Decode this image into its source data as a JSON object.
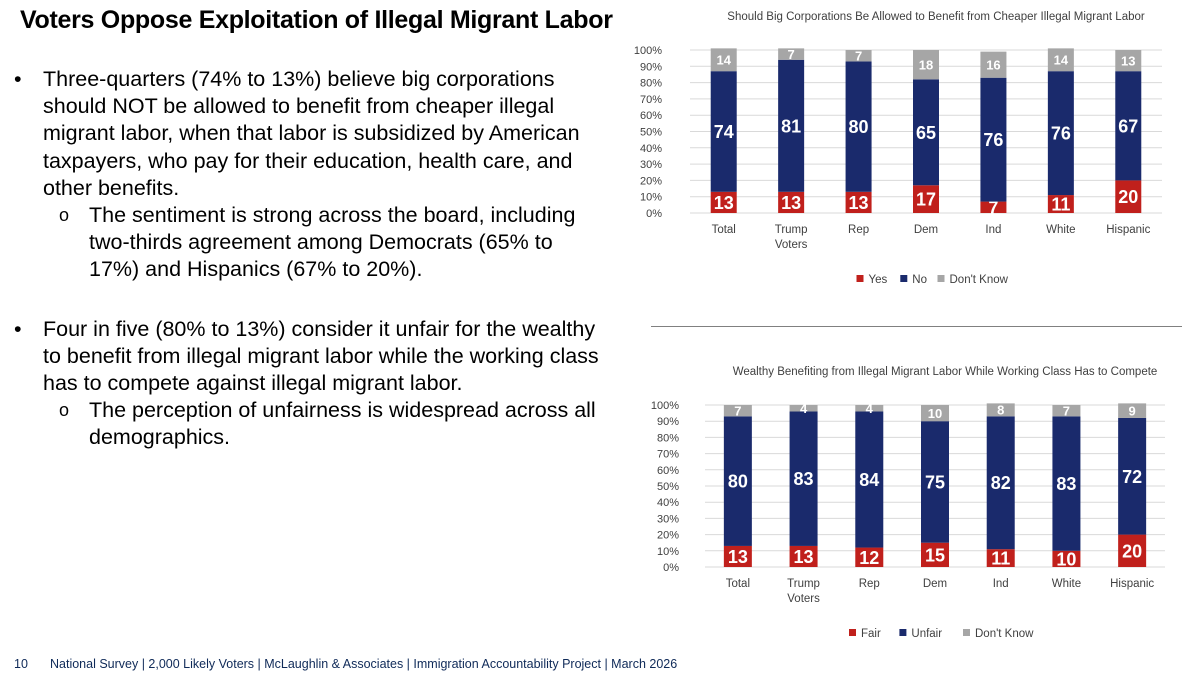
{
  "slide": {
    "title": "Voters Oppose Exploitation of Illegal Migrant Labor",
    "bullets": [
      {
        "marker": "•",
        "text": "Three-quarters (74% to 13%) believe big corporations should NOT be allowed to benefit from cheaper illegal migrant labor, when that labor is subsidized by American taxpayers, who pay for their education, health care, and other benefits."
      },
      {
        "marker": "o",
        "text": "The sentiment is strong across the board, including two-thirds agreement among Democrats (65% to 17%) and Hispanics (67% to 20%)."
      },
      {
        "marker": "•",
        "text": "Four in five (80% to 13%) consider it unfair for the wealthy to benefit from illegal migrant labor while the working class has to compete against illegal migrant labor."
      },
      {
        "marker": "o",
        "text": "The perception of unfairness is widespread across all demographics."
      }
    ],
    "footer": {
      "page": "10",
      "text": "National Survey | 2,000 Likely Voters | McLaughlin & Associates | Immigration Accountability Project | March 2026"
    }
  },
  "colors": {
    "red": "#c0201c",
    "navy": "#1a2a6c",
    "gray": "#a6a6a6",
    "grid": "#d9d9d9"
  },
  "chart_data": [
    {
      "type": "bar",
      "stacked": true,
      "title": "Should Big Corporations Be Allowed to Benefit from Cheaper Illegal Migrant Labor",
      "categories": [
        [
          "Total"
        ],
        [
          "Trump",
          "Voters"
        ],
        [
          "Rep"
        ],
        [
          "Dem"
        ],
        [
          "Ind"
        ],
        [
          "White"
        ],
        [
          "Hispanic"
        ]
      ],
      "series": [
        {
          "name": "Yes",
          "color": "#c0201c",
          "values": [
            13,
            13,
            13,
            17,
            7,
            11,
            20
          ]
        },
        {
          "name": "No",
          "color": "#1a2a6c",
          "values": [
            74,
            81,
            80,
            65,
            76,
            76,
            67
          ]
        },
        {
          "name": "Don't Know",
          "color": "#a6a6a6",
          "values": [
            14,
            7,
            7,
            18,
            16,
            14,
            13
          ]
        }
      ],
      "ylim": [
        0,
        100
      ],
      "yticks": [
        "0%",
        "10%",
        "20%",
        "30%",
        "40%",
        "50%",
        "60%",
        "70%",
        "80%",
        "90%",
        "100%"
      ],
      "grid": true,
      "legend": "bottom"
    },
    {
      "type": "bar",
      "stacked": true,
      "title": "Wealthy Benefiting from Illegal Migrant Labor While Working Class  Has to Compete",
      "categories": [
        [
          "Total"
        ],
        [
          "Trump",
          "Voters"
        ],
        [
          "Rep"
        ],
        [
          "Dem"
        ],
        [
          "Ind"
        ],
        [
          "White"
        ],
        [
          "Hispanic"
        ]
      ],
      "series": [
        {
          "name": "Fair",
          "color": "#c0201c",
          "values": [
            13,
            13,
            12,
            15,
            11,
            10,
            20
          ]
        },
        {
          "name": "Unfair",
          "color": "#1a2a6c",
          "values": [
            80,
            83,
            84,
            75,
            82,
            83,
            72
          ]
        },
        {
          "name": "Don't Know",
          "color": "#a6a6a6",
          "values": [
            7,
            4,
            4,
            10,
            8,
            7,
            9
          ]
        }
      ],
      "ylim": [
        0,
        100
      ],
      "yticks": [
        "0%",
        "10%",
        "20%",
        "30%",
        "40%",
        "50%",
        "60%",
        "70%",
        "80%",
        "90%",
        "100%"
      ],
      "grid": true,
      "legend": "bottom"
    }
  ]
}
